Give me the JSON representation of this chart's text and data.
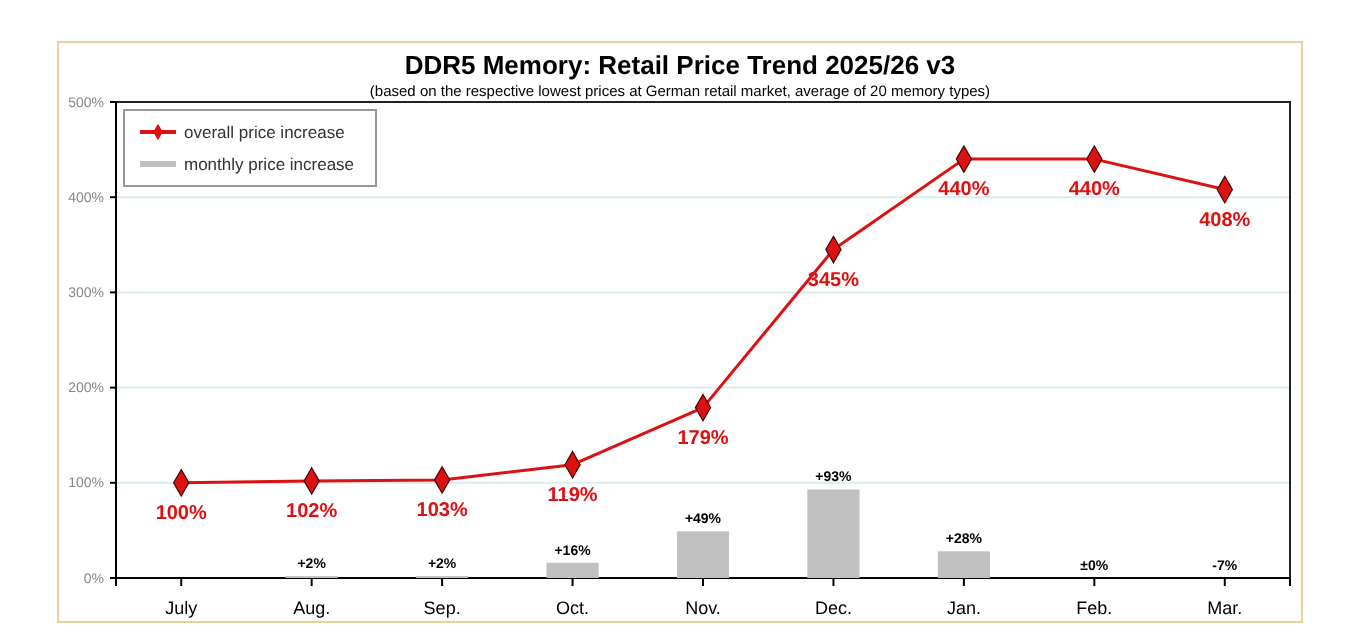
{
  "chart_data": {
    "type": "line",
    "title": "DDR5 Memory: Retail Price Trend 2025/26 v3",
    "subtitle": "(based on the respective lowest prices at German retail market, average of 20 memory types)",
    "categories": [
      "July",
      "Aug.",
      "Sep.",
      "Oct.",
      "Nov.",
      "Dec.",
      "Jan.",
      "Feb.",
      "Mar."
    ],
    "series": [
      {
        "name": "overall price increase",
        "color": "#dd1111",
        "marker": "diamond",
        "values": [
          100,
          102,
          103,
          119,
          179,
          345,
          440,
          440,
          408
        ],
        "value_labels": [
          "100%",
          "102%",
          "103%",
          "119%",
          "179%",
          "345%",
          "440%",
          "440%",
          "408%"
        ]
      },
      {
        "name": "monthly price increase",
        "type": "bar",
        "color": "#c0c0c0",
        "values": [
          null,
          2,
          2,
          16,
          49,
          93,
          28,
          0,
          null
        ],
        "value_labels": [
          null,
          "+2%",
          "+2%",
          "+16%",
          "+49%",
          "+93%",
          "+28%",
          "±0%",
          "-7%"
        ]
      }
    ],
    "ylim": [
      0,
      500
    ],
    "yticks": [
      {
        "value": 0,
        "label": "0%"
      },
      {
        "value": 100,
        "label": "100%"
      },
      {
        "value": 200,
        "label": "200%"
      },
      {
        "value": 300,
        "label": "300%"
      },
      {
        "value": 400,
        "label": "400%"
      },
      {
        "value": 500,
        "label": "500%"
      }
    ],
    "grid": "y",
    "legend": "top left"
  }
}
